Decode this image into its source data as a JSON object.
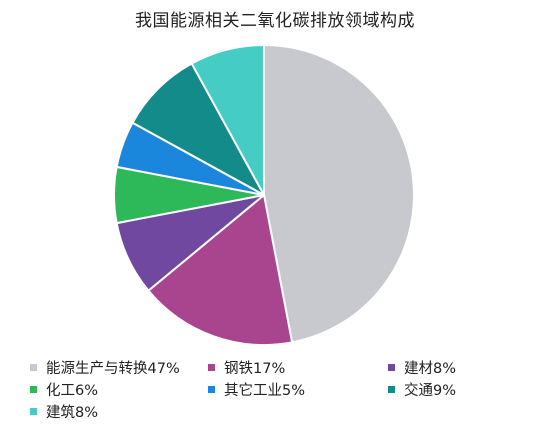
{
  "chart_data": {
    "type": "pie",
    "title": "我国能源相关二氧化碳排放领域构成",
    "start_angle_deg": 0,
    "direction": "clockwise",
    "slices": [
      {
        "label": "能源生产与转换",
        "value": 47,
        "legend": "能源生产与转换47%",
        "color": "#c8c8cf"
      },
      {
        "label": "钢铁",
        "value": 17,
        "legend": "钢铁17%",
        "color": "#a8458e"
      },
      {
        "label": "建材",
        "value": 8,
        "legend": "建材8%",
        "color": "#7048a0"
      },
      {
        "label": "化工",
        "value": 6,
        "legend": "化工6%",
        "color": "#2db85a"
      },
      {
        "label": "其它工业",
        "value": 5,
        "legend": "其它工业5%",
        "color": "#1a86dc"
      },
      {
        "label": "交通",
        "value": 9,
        "legend": "交通9%",
        "color": "#138b8b"
      },
      {
        "label": "建筑",
        "value": 8,
        "legend": "建筑8%",
        "color": "#45ccc4"
      }
    ],
    "legend_position": "bottom"
  }
}
